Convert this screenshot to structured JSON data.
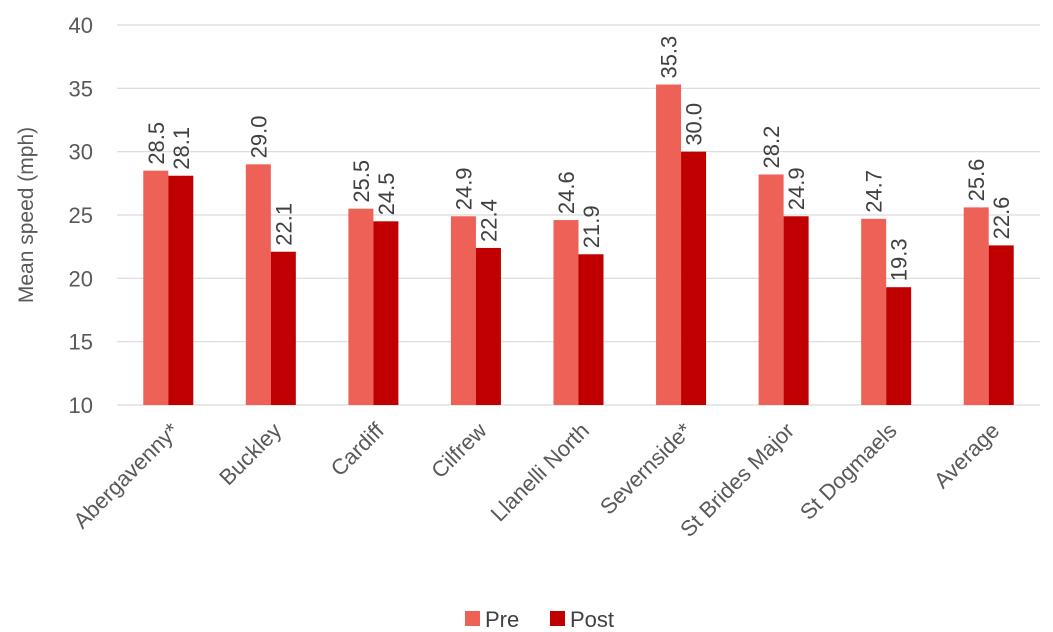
{
  "chart_data": {
    "type": "bar",
    "title": "",
    "xlabel": "",
    "ylabel": "Mean speed (mph)",
    "ylim": [
      10,
      40
    ],
    "yticks": [
      10,
      15,
      20,
      25,
      30,
      35,
      40
    ],
    "grid": true,
    "legend_position": "bottom",
    "categories": [
      "Abergavenny*",
      "Buckley",
      "Cardiff",
      "Cilfrew",
      "Llanelli North",
      "Severnside*",
      "St Brides Major",
      "St Dogmaels",
      "Average"
    ],
    "series": [
      {
        "name": "Pre",
        "color": "#EE6157",
        "values": [
          28.5,
          29.0,
          25.5,
          24.9,
          24.6,
          35.3,
          28.2,
          24.7,
          25.6
        ]
      },
      {
        "name": "Post",
        "color": "#C00000",
        "values": [
          28.1,
          22.1,
          24.5,
          22.4,
          21.9,
          30.0,
          24.9,
          19.3,
          22.6
        ]
      }
    ]
  }
}
